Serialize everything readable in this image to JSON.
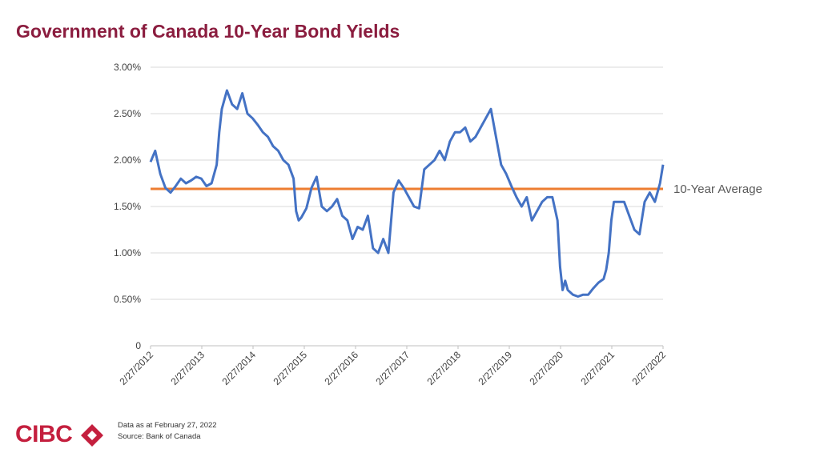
{
  "title": "Government of Canada 10-Year Bond Yields",
  "footer": {
    "line1": "Data as at February 27, 2022",
    "line2": "Source: Bank of Canada"
  },
  "logo": {
    "text": "CIBC",
    "color": "#c41f3e"
  },
  "colors": {
    "series": "#4472c4",
    "average": "#ed7d31",
    "title": "#8b1d3f",
    "grid": "#d9d9d9"
  },
  "chart_data": {
    "type": "line",
    "title": "Government of Canada 10-Year Bond Yields",
    "xlabel": "",
    "ylabel": "",
    "ylim": [
      0,
      3.0
    ],
    "y_ticks": [
      "0",
      "0.50%",
      "1.00%",
      "1.50%",
      "2.00%",
      "2.50%",
      "3.00%"
    ],
    "x_ticks": [
      "2/27/2012",
      "2/27/2013",
      "2/27/2014",
      "2/27/2015",
      "2/27/2016",
      "2/27/2017",
      "2/27/2018",
      "2/27/2019",
      "2/27/2020",
      "2/27/2021",
      "2/27/2022"
    ],
    "grid": true,
    "series": [
      {
        "name": "",
        "x": [
          2012.16,
          2012.25,
          2012.35,
          2012.45,
          2012.55,
          2012.65,
          2012.75,
          2012.85,
          2012.95,
          2013.05,
          2013.15,
          2013.25,
          2013.35,
          2013.45,
          2013.5,
          2013.55,
          2013.65,
          2013.75,
          2013.85,
          2013.95,
          2014.05,
          2014.15,
          2014.25,
          2014.35,
          2014.45,
          2014.55,
          2014.65,
          2014.75,
          2014.85,
          2014.95,
          2015.0,
          2015.05,
          2015.1,
          2015.2,
          2015.3,
          2015.4,
          2015.5,
          2015.6,
          2015.7,
          2015.8,
          2015.9,
          2016.0,
          2016.1,
          2016.2,
          2016.3,
          2016.4,
          2016.5,
          2016.6,
          2016.7,
          2016.8,
          2016.9,
          2017.0,
          2017.1,
          2017.2,
          2017.3,
          2017.4,
          2017.5,
          2017.6,
          2017.7,
          2017.8,
          2017.9,
          2018.0,
          2018.1,
          2018.2,
          2018.3,
          2018.4,
          2018.5,
          2018.6,
          2018.7,
          2018.8,
          2018.9,
          2019.0,
          2019.1,
          2019.2,
          2019.3,
          2019.4,
          2019.5,
          2019.6,
          2019.7,
          2019.8,
          2019.9,
          2020.0,
          2020.1,
          2020.15,
          2020.2,
          2020.25,
          2020.3,
          2020.4,
          2020.5,
          2020.6,
          2020.7,
          2020.8,
          2020.9,
          2021.0,
          2021.05,
          2021.1,
          2021.15,
          2021.2,
          2021.3,
          2021.4,
          2021.5,
          2021.6,
          2021.7,
          2021.8,
          2021.9,
          2022.0,
          2022.1,
          2022.16
        ],
        "values": [
          1.98,
          2.1,
          1.85,
          1.7,
          1.65,
          1.72,
          1.8,
          1.75,
          1.78,
          1.82,
          1.8,
          1.72,
          1.75,
          1.95,
          2.3,
          2.55,
          2.75,
          2.6,
          2.55,
          2.72,
          2.5,
          2.45,
          2.38,
          2.3,
          2.25,
          2.15,
          2.1,
          2.0,
          1.95,
          1.8,
          1.45,
          1.35,
          1.38,
          1.48,
          1.7,
          1.82,
          1.5,
          1.45,
          1.5,
          1.58,
          1.4,
          1.35,
          1.15,
          1.28,
          1.25,
          1.4,
          1.05,
          1.0,
          1.15,
          1.0,
          1.65,
          1.78,
          1.7,
          1.6,
          1.5,
          1.48,
          1.9,
          1.95,
          2.0,
          2.1,
          2.0,
          2.2,
          2.3,
          2.3,
          2.35,
          2.2,
          2.25,
          2.35,
          2.45,
          2.55,
          2.25,
          1.95,
          1.85,
          1.72,
          1.6,
          1.5,
          1.6,
          1.35,
          1.45,
          1.55,
          1.6,
          1.6,
          1.35,
          0.85,
          0.6,
          0.7,
          0.6,
          0.55,
          0.53,
          0.55,
          0.55,
          0.62,
          0.68,
          0.72,
          0.82,
          1.0,
          1.35,
          1.55,
          1.55,
          1.55,
          1.4,
          1.25,
          1.2,
          1.55,
          1.65,
          1.55,
          1.75,
          1.95
        ]
      },
      {
        "name": "10-Year Average",
        "value": 1.69
      }
    ],
    "annotations": [
      "10-Year Average"
    ]
  }
}
